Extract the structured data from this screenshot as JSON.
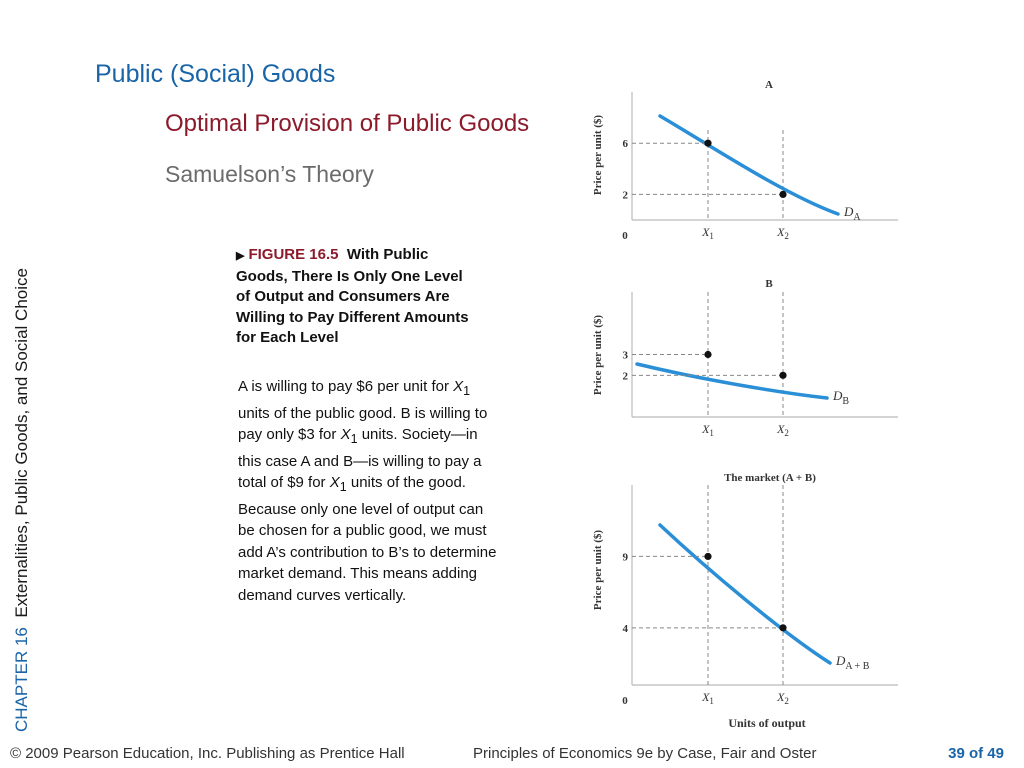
{
  "slide": {
    "title": "Public (Social) Goods",
    "subtitle": "Optimal Provision of Public Goods",
    "subsubtitle": "Samuelson’s Theory"
  },
  "sidebar": {
    "chapter_label": "CHAPTER 16",
    "chapter_title": "Externalities, Public Goods, and Social Choice"
  },
  "figure": {
    "marker_icon": "triangle-right-icon",
    "number": "FIGURE 16.5",
    "title": "With Public Goods, There Is Only One Level of Output and Consumers Are Willing to Pay Different Amounts for Each Level"
  },
  "body": {
    "p1_a": "A is willing to pay $6 per unit for ",
    "p1_x": "X",
    "p1_sub": "1",
    "p1_b": " units of the public good. B is willing to pay only $3 for ",
    "p1_x2": "X",
    "p1_sub2": "1",
    "p1_c": " units. Society—in this case A and B—is willing to pay a total of $9 for ",
    "p1_x3": "X",
    "p1_sub3": "1",
    "p1_d": " units of the good.",
    "p2": "Because only one level of output can be chosen for a public good, we must add A’s contribution to B’s to determine market demand. This means adding demand curves vertically."
  },
  "footer": {
    "copyright": "© 2009 Pearson Education, Inc. Publishing as Prentice Hall",
    "book": "Principles of Economics 9e by Case, Fair and Oster",
    "page": "39 of 49"
  },
  "chart_data": [
    {
      "type": "line",
      "title": "A",
      "ylabel": "Price per unit ($)",
      "xlabel": "",
      "origin_label": "0",
      "x_ticks": [
        {
          "main": "X",
          "sub": "1"
        },
        {
          "main": "X",
          "sub": "2"
        }
      ],
      "y_ticks": [
        "6",
        "2"
      ],
      "series": [
        {
          "name": "D",
          "name_sub": "A",
          "points": [
            [
              "X1",
              6
            ],
            [
              "X2",
              2
            ]
          ]
        }
      ]
    },
    {
      "type": "line",
      "title": "B",
      "ylabel": "Price per unit ($)",
      "xlabel": "",
      "x_ticks": [
        {
          "main": "X",
          "sub": "1"
        },
        {
          "main": "X",
          "sub": "2"
        }
      ],
      "y_ticks": [
        "3",
        "2"
      ],
      "series": [
        {
          "name": "D",
          "name_sub": "B",
          "points": [
            [
              "X1",
              3
            ],
            [
              "X2",
              2
            ]
          ]
        }
      ]
    },
    {
      "type": "line",
      "title": "The market (A + B)",
      "ylabel": "Price per unit ($)",
      "xlabel": "Units of output",
      "origin_label": "0",
      "x_ticks": [
        {
          "main": "X",
          "sub": "1"
        },
        {
          "main": "X",
          "sub": "2"
        }
      ],
      "y_ticks": [
        "9",
        "4"
      ],
      "series": [
        {
          "name": "D",
          "name_sub": "A + B",
          "points": [
            [
              "X1",
              9
            ],
            [
              "X2",
              4
            ]
          ]
        }
      ]
    }
  ],
  "colors": {
    "curve": "#2a8fd6",
    "title_blue": "#1a64a8",
    "subtitle_red": "#8b1a2b"
  }
}
